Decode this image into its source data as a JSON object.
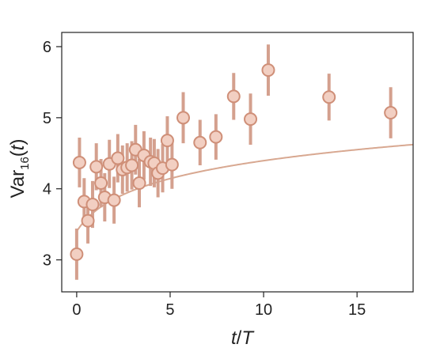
{
  "chart_data": {
    "type": "scatter",
    "xlabel_parts": {
      "var": "t",
      "sep": "/",
      "den": "T"
    },
    "ylabel_parts": {
      "base": "Var",
      "sub": "16",
      "open": "(",
      "arg": "t",
      "close": ")"
    },
    "xlim": [
      -0.8,
      18
    ],
    "ylim": [
      2.55,
      6.2
    ],
    "xticks": [
      0,
      5,
      10,
      15
    ],
    "yticks": [
      3,
      4,
      5,
      6
    ],
    "grid": false,
    "colors": {
      "point_fill": "#f2cfc2",
      "point_stroke": "#cf8f78",
      "error_bar": "#d4a08e",
      "fit_line": "#d8a891",
      "axis": "#222222"
    },
    "series": [
      {
        "points": [
          {
            "x": 0.0,
            "y": 3.08,
            "err": 0.36
          },
          {
            "x": 0.15,
            "y": 4.37,
            "err": 0.35
          },
          {
            "x": 0.4,
            "y": 3.82,
            "err": 0.33
          },
          {
            "x": 0.6,
            "y": 3.55,
            "err": 0.32
          },
          {
            "x": 0.85,
            "y": 3.78,
            "err": 0.33
          },
          {
            "x": 1.05,
            "y": 4.31,
            "err": 0.33
          },
          {
            "x": 1.3,
            "y": 4.08,
            "err": 0.34
          },
          {
            "x": 1.5,
            "y": 3.88,
            "err": 0.34
          },
          {
            "x": 1.75,
            "y": 4.35,
            "err": 0.34
          },
          {
            "x": 2.0,
            "y": 3.84,
            "err": 0.33
          },
          {
            "x": 2.2,
            "y": 4.43,
            "err": 0.34
          },
          {
            "x": 2.45,
            "y": 4.27,
            "err": 0.34
          },
          {
            "x": 2.7,
            "y": 4.3,
            "err": 0.34
          },
          {
            "x": 2.95,
            "y": 4.33,
            "err": 0.34
          },
          {
            "x": 3.15,
            "y": 4.55,
            "err": 0.35
          },
          {
            "x": 3.35,
            "y": 4.08,
            "err": 0.34
          },
          {
            "x": 3.6,
            "y": 4.47,
            "err": 0.34
          },
          {
            "x": 3.95,
            "y": 4.38,
            "err": 0.34
          },
          {
            "x": 4.15,
            "y": 4.36,
            "err": 0.34
          },
          {
            "x": 4.35,
            "y": 4.22,
            "err": 0.34
          },
          {
            "x": 4.6,
            "y": 4.29,
            "err": 0.34
          },
          {
            "x": 4.85,
            "y": 4.68,
            "err": 0.34
          },
          {
            "x": 5.1,
            "y": 4.34,
            "err": 0.34
          },
          {
            "x": 5.7,
            "y": 5.0,
            "err": 0.36
          },
          {
            "x": 6.6,
            "y": 4.65,
            "err": 0.32
          },
          {
            "x": 7.45,
            "y": 4.73,
            "err": 0.32
          },
          {
            "x": 8.4,
            "y": 5.3,
            "err": 0.33
          },
          {
            "x": 9.3,
            "y": 4.98,
            "err": 0.36
          },
          {
            "x": 10.25,
            "y": 5.67,
            "err": 0.36
          },
          {
            "x": 13.5,
            "y": 5.29,
            "err": 0.33
          },
          {
            "x": 16.8,
            "y": 5.07,
            "err": 0.36
          }
        ],
        "fit": {
          "model": "log",
          "a": 3.4,
          "b": 0.415,
          "c": 1.0
        }
      }
    ]
  }
}
